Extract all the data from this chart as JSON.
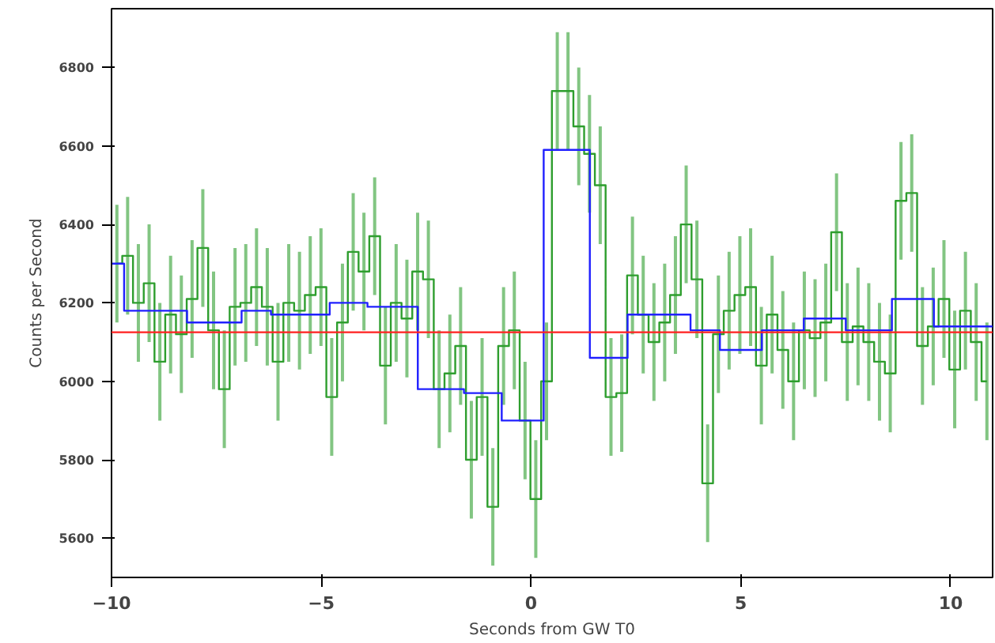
{
  "chart_data": {
    "type": "step",
    "xlabel": "Seconds from GW T0",
    "ylabel": "Counts per Second",
    "xlim": [
      -10,
      11
    ],
    "ylim": [
      5500,
      6950
    ],
    "xticks": [
      {
        "value": -10,
        "label": "−10"
      },
      {
        "value": -5,
        "label": "−5"
      },
      0,
      5,
      10
    ],
    "yticks": [
      5600,
      5800,
      6000,
      6200,
      6400,
      6600,
      6800
    ],
    "grid": false,
    "series": [
      {
        "color": "#2e9e2e",
        "x": [
          -9.872,
          -9.616,
          -9.36,
          -9.104,
          -8.848,
          -8.592,
          -8.336,
          -8.08,
          -7.824,
          -7.568,
          -7.312,
          -7.056,
          -6.8,
          -6.544,
          -6.288,
          -6.032,
          -5.776,
          -5.52,
          -5.264,
          -5.008,
          -4.752,
          -4.496,
          -4.24,
          -3.984,
          -3.728,
          -3.472,
          -3.216,
          -2.96,
          -2.704,
          -2.448,
          -2.192,
          -1.936,
          -1.68,
          -1.424,
          -1.168,
          -0.912,
          -0.656,
          -0.4,
          -0.144,
          0.112,
          0.368,
          0.624,
          0.88,
          1.136,
          1.392,
          1.648,
          1.904,
          2.16,
          2.416,
          2.672,
          2.928,
          3.184,
          3.44,
          3.696,
          3.952,
          4.208,
          4.464,
          4.72,
          4.976,
          5.232,
          5.488,
          5.744,
          6.0,
          6.256,
          6.512,
          6.768,
          7.024,
          7.28,
          7.536,
          7.792,
          8.048,
          8.304,
          8.56,
          8.816,
          9.072,
          9.328,
          9.584,
          9.84,
          10.096,
          10.352,
          10.608,
          10.864
        ],
        "values": [
          6300,
          6320,
          6200,
          6250,
          6050,
          6170,
          6120,
          6210,
          6340,
          6130,
          5980,
          6190,
          6200,
          6240,
          6190,
          6050,
          6200,
          6180,
          6220,
          6240,
          5960,
          6150,
          6330,
          6280,
          6370,
          6040,
          6200,
          6160,
          6280,
          6260,
          5980,
          6020,
          6090,
          5800,
          5960,
          5680,
          6090,
          6130,
          5900,
          5700,
          6000,
          6740,
          6740,
          6650,
          6580,
          6500,
          5960,
          5970,
          6270,
          6170,
          6100,
          6150,
          6220,
          6400,
          6260,
          5740,
          6120,
          6180,
          6220,
          6240,
          6040,
          6170,
          6080,
          6000,
          6130,
          6110,
          6150,
          6380,
          6100,
          6140,
          6100,
          6050,
          6020,
          6460,
          6480,
          6090,
          6140,
          6210,
          6030,
          6180,
          6100,
          6000
        ],
        "errors": [
          150,
          150,
          150,
          150,
          150,
          150,
          150,
          150,
          150,
          150,
          150,
          150,
          150,
          150,
          150,
          150,
          150,
          150,
          150,
          150,
          150,
          150,
          150,
          150,
          150,
          150,
          150,
          150,
          150,
          150,
          150,
          150,
          150,
          150,
          150,
          150,
          150,
          150,
          150,
          150,
          150,
          150,
          150,
          150,
          150,
          150,
          150,
          150,
          150,
          150,
          150,
          150,
          150,
          150,
          150,
          150,
          150,
          150,
          150,
          150,
          150,
          150,
          150,
          150,
          150,
          150,
          150,
          150,
          150,
          150,
          150,
          150,
          150,
          150,
          150,
          150,
          150,
          150,
          150,
          150,
          150,
          150
        ]
      },
      {
        "color": "#2020ff",
        "x": [
          -10.0,
          -9.7,
          -8.2,
          -6.9,
          -6.2,
          -4.8,
          -3.9,
          -2.7,
          -1.6,
          -0.7,
          0.3,
          1.4,
          2.3,
          3.8,
          4.5,
          5.5,
          6.5,
          7.5,
          8.6,
          9.6,
          11
        ],
        "values": [
          6300,
          6180,
          6150,
          6180,
          6170,
          6200,
          6190,
          5980,
          5970,
          5900,
          6590,
          6060,
          6170,
          6130,
          6080,
          6130,
          6160,
          6130,
          6210,
          6140,
          6140
        ]
      }
    ],
    "ref_lines": [
      {
        "axis": "y",
        "value": 6125,
        "color": "#ff2020"
      }
    ]
  }
}
